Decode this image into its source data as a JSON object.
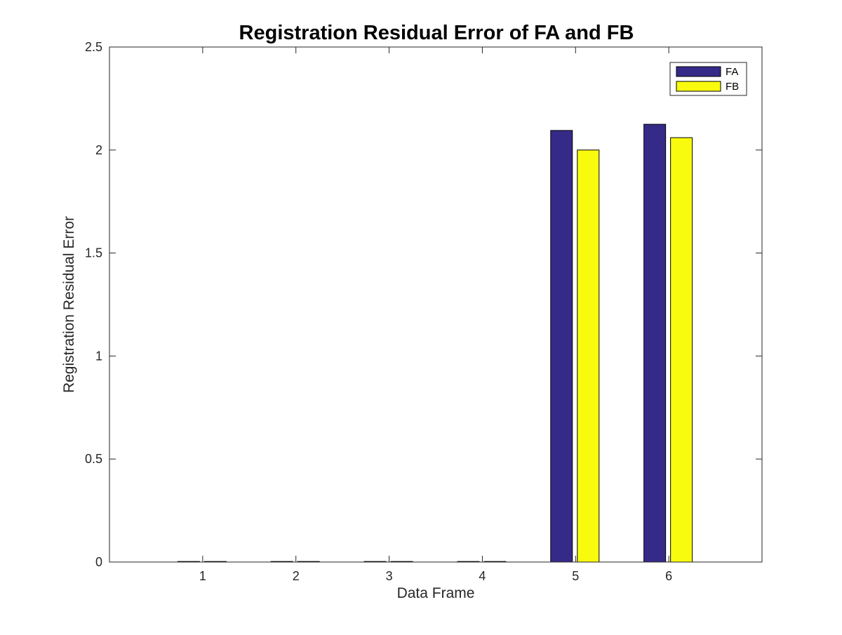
{
  "chart_data": {
    "type": "bar",
    "title": "Registration Residual Error of FA and FB",
    "xlabel": "Data Frame",
    "ylabel": "Registration Residual Error",
    "categories": [
      "1",
      "2",
      "3",
      "4",
      "5",
      "6"
    ],
    "xlim": [
      0,
      7
    ],
    "ylim": [
      0,
      2.5
    ],
    "yticks": [
      "0",
      "0.5",
      "1",
      "1.5",
      "2",
      "2.5"
    ],
    "series": [
      {
        "name": "FA",
        "color": "#352A87",
        "values": [
          0.0006,
          0.0012,
          0.0011,
          0.0012,
          2.095,
          2.125
        ]
      },
      {
        "name": "FB",
        "color": "#F9FB0E",
        "values": [
          0.0006,
          0.0012,
          0.0011,
          0.0012,
          2.0,
          2.06
        ]
      }
    ],
    "grid": false,
    "legend_position": "top-right"
  }
}
